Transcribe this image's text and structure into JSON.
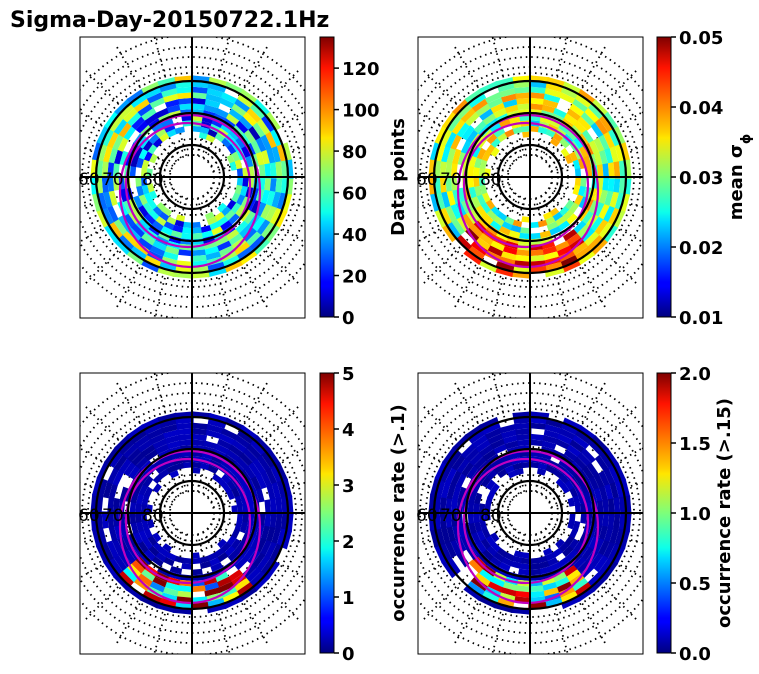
{
  "title": "Sigma-Day-20150722.1Hz",
  "chart_data": [
    {
      "type": "heatmap",
      "projection": "polar",
      "ring_labels": [
        "60",
        "70",
        "80"
      ],
      "colormap": "jet",
      "colorbar": {
        "label": "Data points",
        "range": [
          0,
          135
        ],
        "ticks": [
          "0",
          "20",
          "40",
          "60",
          "80",
          "100",
          "120"
        ]
      }
    },
    {
      "type": "heatmap",
      "projection": "polar",
      "ring_labels": [
        "60",
        "70",
        "80"
      ],
      "colormap": "jet",
      "colorbar": {
        "label": "mean σ",
        "label_subscript": "ϕ",
        "range": [
          0.01,
          0.05
        ],
        "ticks": [
          "0.01",
          "0.02",
          "0.03",
          "0.04",
          "0.05"
        ]
      }
    },
    {
      "type": "heatmap",
      "projection": "polar",
      "ring_labels": [
        "60",
        "70",
        "80"
      ],
      "colormap": "jet",
      "colorbar": {
        "label": "occurrence rate (>.1)",
        "range": [
          0,
          5
        ],
        "ticks": [
          "0",
          "1",
          "2",
          "3",
          "4",
          "5"
        ]
      }
    },
    {
      "type": "heatmap",
      "projection": "polar",
      "ring_labels": [
        "60",
        "70",
        "80"
      ],
      "colormap": "jet",
      "colorbar": {
        "label": "occurrence rate (>.15)",
        "range": [
          0,
          2
        ],
        "ticks": [
          "0.0",
          "0.5",
          "1.0",
          "1.5",
          "2.0"
        ]
      }
    }
  ]
}
